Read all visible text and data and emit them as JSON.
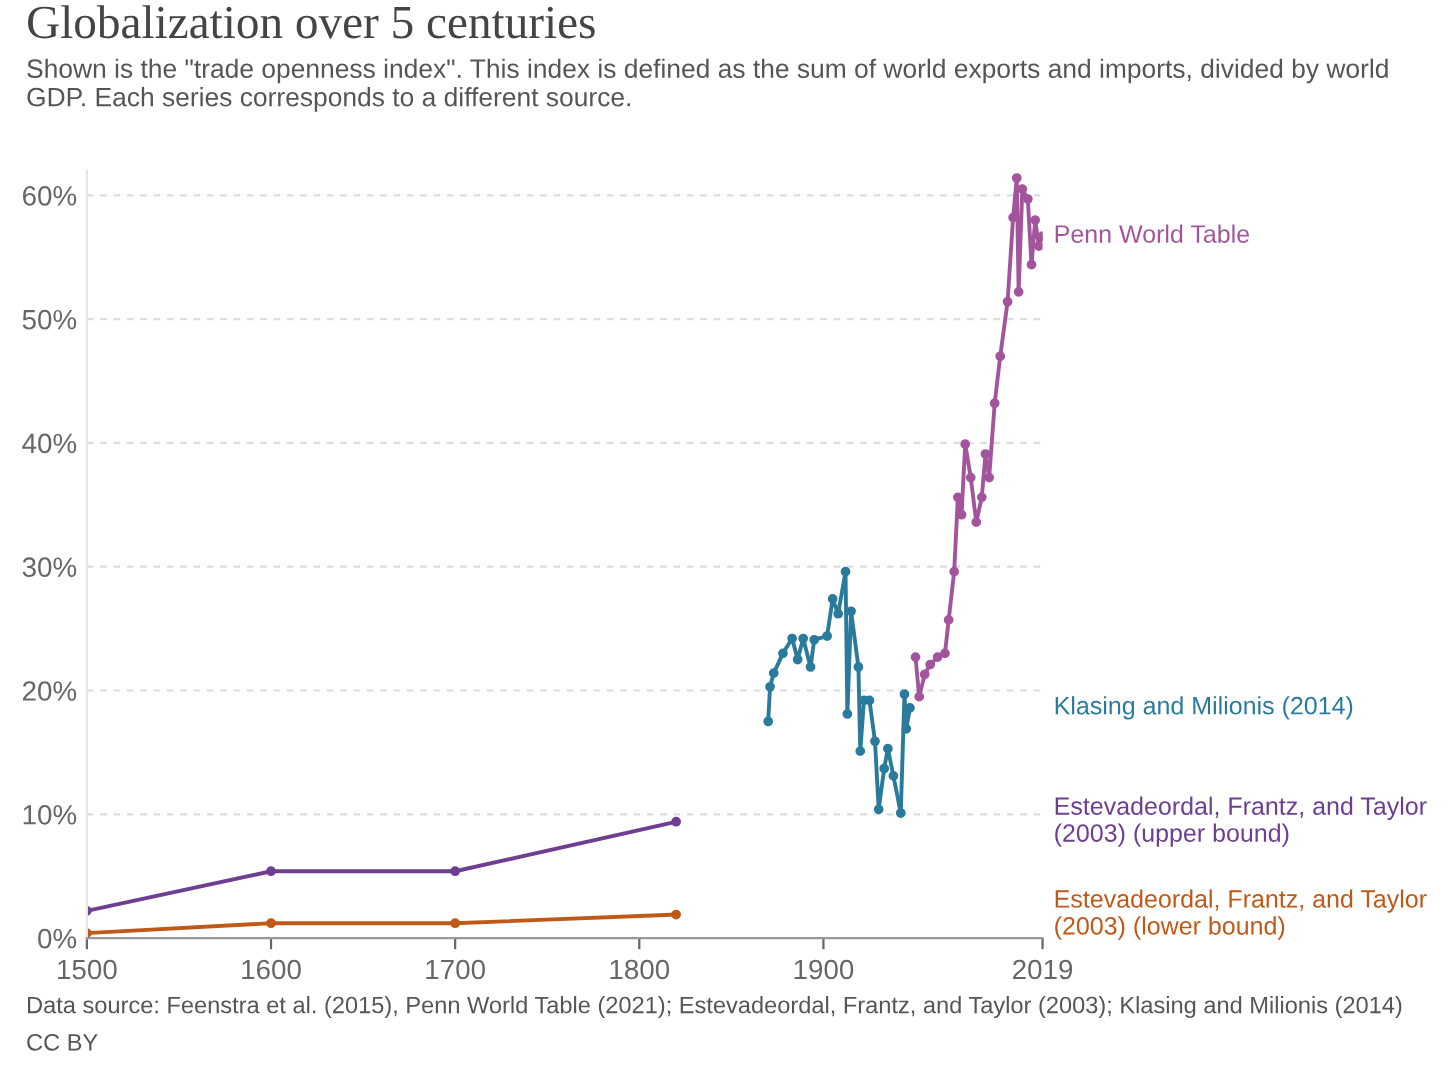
{
  "chart_data": {
    "type": "line",
    "title": "Globalization over 5 centuries",
    "subtitle": "Shown is the \"trade openness index\". This index is defined as the sum of world exports and imports, divided by world GDP. Each series corresponds to a different source.",
    "annotations": [
      "Data source: Feenstra et al. (2015), Penn World Table (2021); Estevadeordal, Frantz, and Taylor (2003); Klasing and Milionis (2014)",
      "CC BY"
    ],
    "xlim": [
      1500,
      2019
    ],
    "xticks": [
      1500,
      1600,
      1700,
      1800,
      1900,
      2019
    ],
    "ylim": [
      0,
      62
    ],
    "yticks": [
      {
        "value": 0,
        "label": "0%"
      },
      {
        "value": 10,
        "label": "10%"
      },
      {
        "value": 20,
        "label": "20%"
      },
      {
        "value": 30,
        "label": "30%"
      },
      {
        "value": 40,
        "label": "40%"
      },
      {
        "value": 50,
        "label": "50%"
      },
      {
        "value": 60,
        "label": "60%"
      }
    ],
    "grid": "y",
    "legend": false,
    "marker": "circle",
    "line_style": "solid",
    "series": [
      {
        "name": "Penn World Table",
        "color": "#a2559c",
        "x": [
          1950,
          1952,
          1955,
          1958,
          1962,
          1966,
          1968,
          1971,
          1973,
          1975,
          1977,
          1980,
          1983,
          1986,
          1988,
          1990,
          1993,
          1996,
          2000,
          2003,
          2005,
          2006,
          2008,
          2011,
          2013,
          2015,
          2017,
          2019
        ],
        "values": [
          22.7,
          19.5,
          21.3,
          22.1,
          22.7,
          23.0,
          25.7,
          29.6,
          35.6,
          34.2,
          39.9,
          37.2,
          33.6,
          35.6,
          39.1,
          37.2,
          43.2,
          47.0,
          51.4,
          58.2,
          61.4,
          52.2,
          60.5,
          59.7,
          54.4,
          58.0,
          55.9,
          56.7
        ]
      },
      {
        "name": "Klasing and Milionis (2014)",
        "color": "#2a7b9b",
        "x": [
          1870,
          1871,
          1873,
          1878,
          1883,
          1886,
          1889,
          1893,
          1895,
          1902,
          1905,
          1908,
          1912,
          1913,
          1915,
          1919,
          1920,
          1922,
          1925,
          1928,
          1930,
          1933,
          1935,
          1938,
          1942,
          1944,
          1945,
          1947
        ],
        "values": [
          17.5,
          20.3,
          21.4,
          23.0,
          24.2,
          22.5,
          24.2,
          21.9,
          24.1,
          24.4,
          27.4,
          26.2,
          29.6,
          18.1,
          26.4,
          21.9,
          15.1,
          19.2,
          19.2,
          15.9,
          10.4,
          13.7,
          15.3,
          13.1,
          10.1,
          19.7,
          16.9,
          18.6
        ]
      },
      {
        "name": "Estevadeordal, Frantz, and Taylor (2003) (upper bound)",
        "color": "#6d3e91",
        "x": [
          1500,
          1600,
          1700,
          1820
        ],
        "values": [
          2.2,
          5.4,
          5.4,
          9.4
        ]
      },
      {
        "name": "Estevadeordal, Frantz, and Taylor (2003) (lower bound)",
        "color": "#c05917",
        "x": [
          1500,
          1600,
          1700,
          1820
        ],
        "values": [
          0.4,
          1.2,
          1.2,
          1.9
        ]
      }
    ]
  }
}
